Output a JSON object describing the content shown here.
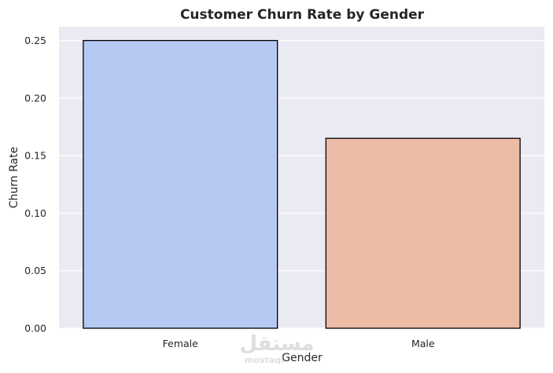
{
  "chart_data": {
    "type": "bar",
    "title": "Customer Churn Rate by Gender",
    "xlabel": "Gender",
    "ylabel": "Churn Rate",
    "categories": [
      "Female",
      "Male"
    ],
    "values": [
      0.25,
      0.165
    ],
    "bar_colors": [
      "#b5c9f3",
      "#ecbca7"
    ],
    "bar_edge_color": "#000000",
    "ylim": [
      0,
      0.262
    ],
    "yticks": [
      0.0,
      0.05,
      0.1,
      0.15,
      0.2,
      0.25
    ],
    "ytick_labels": [
      "0.00",
      "0.05",
      "0.10",
      "0.15",
      "0.20",
      "0.25"
    ],
    "grid": true,
    "background": "#eaeaf2",
    "grid_color": "#ffffff"
  },
  "watermark": {
    "text_arabic": "مستقل",
    "text_latin": "mostaql"
  }
}
